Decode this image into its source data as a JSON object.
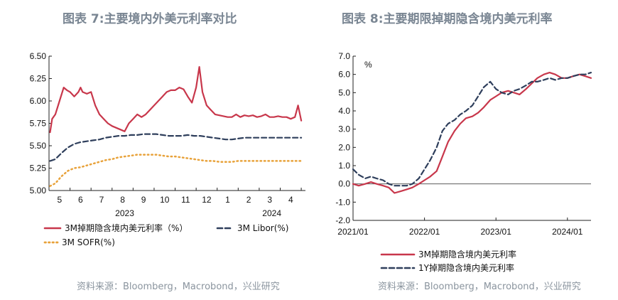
{
  "chart_data": [
    {
      "type": "line",
      "title": "图表 7:主要境内外美元利率对比",
      "source": "资料来源：Bloomberg，Macrobond，兴业研究",
      "x_tick_labels": [
        "5",
        "6",
        "7",
        "8",
        "9",
        "10",
        "11",
        "12",
        "1",
        "2",
        "3",
        "4"
      ],
      "x_year_labels": [
        "2023",
        "2024"
      ],
      "y_tick_labels": [
        "5.00",
        "5.25",
        "5.50",
        "5.75",
        "6.00",
        "6.25",
        "6.50"
      ],
      "ylim": [
        5.0,
        6.5
      ],
      "xlim": [
        0,
        12.2
      ],
      "legend": [
        {
          "label": "3M掉期隐含境内美元利率（%）",
          "style": "solid"
        },
        {
          "label": "3M Libor(%)",
          "style": "dashed"
        },
        {
          "label": "3M SOFR(%)",
          "style": "dotted"
        }
      ],
      "series": [
        {
          "name": "3M掉期隐含境内美元利率（%）",
          "color": "#c8374b",
          "x": [
            0.05,
            0.15,
            0.3,
            0.5,
            0.7,
            0.85,
            1.0,
            1.2,
            1.4,
            1.5,
            1.6,
            1.8,
            2.0,
            2.2,
            2.4,
            2.6,
            2.8,
            3.0,
            3.2,
            3.4,
            3.6,
            3.8,
            4.0,
            4.2,
            4.4,
            4.6,
            4.8,
            5.0,
            5.2,
            5.4,
            5.6,
            5.8,
            6.0,
            6.2,
            6.4,
            6.6,
            6.8,
            7.0,
            7.15,
            7.3,
            7.5,
            7.7,
            7.9,
            8.1,
            8.3,
            8.5,
            8.7,
            8.9,
            9.1,
            9.3,
            9.5,
            9.7,
            9.9,
            10.1,
            10.3,
            10.5,
            10.7,
            10.9,
            11.1,
            11.3,
            11.5,
            11.7,
            11.85,
            12.0
          ],
          "values": [
            5.65,
            5.8,
            5.85,
            6.0,
            6.15,
            6.12,
            6.1,
            6.05,
            6.1,
            6.15,
            6.1,
            6.08,
            6.1,
            5.95,
            5.85,
            5.8,
            5.75,
            5.72,
            5.7,
            5.68,
            5.66,
            5.75,
            5.8,
            5.85,
            5.82,
            5.85,
            5.9,
            5.95,
            6.0,
            6.05,
            6.1,
            6.12,
            6.12,
            6.15,
            6.13,
            6.05,
            5.98,
            6.15,
            6.38,
            6.1,
            5.95,
            5.9,
            5.85,
            5.84,
            5.83,
            5.82,
            5.82,
            5.85,
            5.82,
            5.84,
            5.83,
            5.84,
            5.82,
            5.83,
            5.85,
            5.82,
            5.82,
            5.83,
            5.82,
            5.82,
            5.8,
            5.82,
            5.95,
            5.78
          ]
        },
        {
          "name": "3M Libor(%)",
          "color": "#2f3f5c",
          "x": [
            0.05,
            0.3,
            0.6,
            0.9,
            1.2,
            1.5,
            1.8,
            2.1,
            2.4,
            2.7,
            3.0,
            3.3,
            3.6,
            3.9,
            4.2,
            4.5,
            4.8,
            5.1,
            5.4,
            5.7,
            6.0,
            6.3,
            6.6,
            6.9,
            7.2,
            7.5,
            7.8,
            8.1,
            8.4,
            8.7,
            9.0,
            9.3,
            9.6,
            9.9,
            10.2,
            10.5,
            10.8,
            11.1,
            11.4,
            11.7,
            12.0
          ],
          "values": [
            5.33,
            5.35,
            5.42,
            5.48,
            5.52,
            5.54,
            5.55,
            5.56,
            5.57,
            5.59,
            5.6,
            5.61,
            5.61,
            5.62,
            5.62,
            5.63,
            5.63,
            5.63,
            5.62,
            5.61,
            5.61,
            5.61,
            5.62,
            5.61,
            5.61,
            5.6,
            5.59,
            5.58,
            5.57,
            5.57,
            5.58,
            5.59,
            5.59,
            5.59,
            5.59,
            5.59,
            5.59,
            5.59,
            5.59,
            5.59,
            5.59
          ]
        },
        {
          "name": "3M SOFR(%)",
          "color": "#e8a23a",
          "x": [
            0.05,
            0.3,
            0.6,
            0.9,
            1.2,
            1.5,
            1.8,
            2.1,
            2.4,
            2.7,
            3.0,
            3.3,
            3.6,
            3.9,
            4.2,
            4.5,
            4.8,
            5.1,
            5.4,
            5.7,
            6.0,
            6.3,
            6.6,
            6.9,
            7.2,
            7.5,
            7.8,
            8.1,
            8.4,
            8.7,
            9.0,
            9.3,
            9.6,
            9.9,
            10.2,
            10.5,
            10.8,
            11.1,
            11.4,
            11.7,
            12.0
          ],
          "values": [
            5.05,
            5.08,
            5.16,
            5.22,
            5.25,
            5.26,
            5.28,
            5.3,
            5.32,
            5.34,
            5.35,
            5.37,
            5.38,
            5.39,
            5.4,
            5.4,
            5.4,
            5.4,
            5.39,
            5.38,
            5.38,
            5.37,
            5.36,
            5.35,
            5.34,
            5.33,
            5.33,
            5.32,
            5.32,
            5.32,
            5.33,
            5.33,
            5.33,
            5.33,
            5.33,
            5.33,
            5.33,
            5.33,
            5.33,
            5.33,
            5.33
          ]
        }
      ]
    },
    {
      "type": "line",
      "title": "图表 8:主要期限掉期隐含境内美元利率",
      "source": "资料来源：Bloomberg，Macrobond，兴业研究",
      "ylabel": "%",
      "x_tick_labels": [
        "2021/01",
        "2022/01",
        "2023/01",
        "2024/01"
      ],
      "x_tick_values": [
        2021.0,
        2022.0,
        2023.0,
        2024.0
      ],
      "y_tick_labels": [
        "-2.0",
        "-1.0",
        "0.0",
        "1.0",
        "2.0",
        "3.0",
        "4.0",
        "5.0",
        "6.0",
        "7.0"
      ],
      "ylim": [
        -2.0,
        7.0
      ],
      "xlim": [
        2021.0,
        2024.33
      ],
      "legend": [
        {
          "label": "3M掉期隐含境内美元利率",
          "style": "solid"
        },
        {
          "label": "1Y掉期隐含境内美元利率",
          "style": "dashed"
        }
      ],
      "series": [
        {
          "name": "3M掉期隐含境内美元利率",
          "color": "#c8374b",
          "x": [
            2021.0,
            2021.08,
            2021.17,
            2021.25,
            2021.33,
            2021.42,
            2021.5,
            2021.58,
            2021.67,
            2021.75,
            2021.83,
            2021.92,
            2022.0,
            2022.08,
            2022.17,
            2022.25,
            2022.33,
            2022.42,
            2022.5,
            2022.58,
            2022.67,
            2022.75,
            2022.83,
            2022.92,
            2023.0,
            2023.08,
            2023.17,
            2023.25,
            2023.33,
            2023.42,
            2023.5,
            2023.58,
            2023.67,
            2023.75,
            2023.83,
            2023.92,
            2024.0,
            2024.08,
            2024.17,
            2024.25,
            2024.33
          ],
          "values": [
            0.0,
            -0.1,
            0.0,
            0.1,
            0.0,
            -0.1,
            -0.2,
            -0.5,
            -0.4,
            -0.3,
            -0.2,
            0.0,
            0.2,
            0.4,
            0.7,
            1.5,
            2.3,
            2.9,
            3.3,
            3.6,
            3.7,
            3.9,
            4.2,
            4.6,
            4.8,
            5.0,
            5.1,
            5.0,
            4.9,
            5.2,
            5.5,
            5.8,
            6.0,
            6.1,
            6.0,
            5.8,
            5.8,
            5.9,
            6.0,
            5.9,
            5.8
          ]
        },
        {
          "name": "1Y掉期隐含境内美元利率",
          "color": "#2f3f5c",
          "x": [
            2021.0,
            2021.08,
            2021.17,
            2021.25,
            2021.33,
            2021.42,
            2021.5,
            2021.58,
            2021.67,
            2021.75,
            2021.83,
            2021.92,
            2022.0,
            2022.08,
            2022.17,
            2022.25,
            2022.33,
            2022.42,
            2022.5,
            2022.58,
            2022.67,
            2022.75,
            2022.83,
            2022.92,
            2023.0,
            2023.08,
            2023.17,
            2023.25,
            2023.33,
            2023.42,
            2023.5,
            2023.58,
            2023.67,
            2023.75,
            2023.83,
            2023.92,
            2024.0,
            2024.08,
            2024.17,
            2024.25,
            2024.33
          ],
          "values": [
            0.8,
            0.5,
            0.3,
            0.4,
            0.3,
            0.2,
            0.0,
            -0.1,
            -0.1,
            -0.1,
            0.0,
            0.3,
            0.8,
            1.3,
            2.0,
            2.9,
            3.3,
            3.5,
            3.8,
            4.0,
            4.3,
            4.8,
            5.3,
            5.6,
            5.2,
            5.0,
            4.9,
            5.1,
            5.2,
            5.4,
            5.6,
            5.6,
            5.7,
            5.8,
            5.7,
            5.8,
            5.8,
            5.9,
            6.0,
            6.0,
            6.1
          ]
        }
      ]
    }
  ]
}
